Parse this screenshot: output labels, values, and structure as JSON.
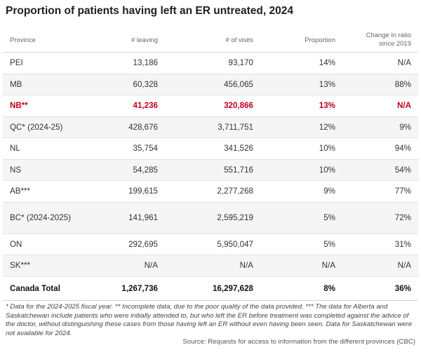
{
  "chart_data": {
    "type": "table",
    "title": "Proportion of patients having left an ER untreated, 2024",
    "columns": [
      "Province",
      "# leaving",
      "# of visits",
      "Proportion",
      "Change in ratio since 2019"
    ],
    "rows": [
      {
        "province": "PEI",
        "leaving": "13,186",
        "visits": "93,170",
        "proportion": "14%",
        "change": "N/A"
      },
      {
        "province": "MB",
        "leaving": "60,328",
        "visits": "456,065",
        "proportion": "13%",
        "change": "88%"
      },
      {
        "province": "NB**",
        "leaving": "41,236",
        "visits": "320,866",
        "proportion": "13%",
        "change": "N/A",
        "highlight": true
      },
      {
        "province": "QC* (2024-25)",
        "leaving": "428,676",
        "visits": "3,711,751",
        "proportion": "12%",
        "change": "9%"
      },
      {
        "province": "NL",
        "leaving": "35,754",
        "visits": "341,526",
        "proportion": "10%",
        "change": "94%"
      },
      {
        "province": "NS",
        "leaving": "54,285",
        "visits": "551,716",
        "proportion": "10%",
        "change": "54%"
      },
      {
        "province": "AB***",
        "leaving": "199,615",
        "visits": "2,277,268",
        "proportion": "9%",
        "change": "77%"
      },
      {
        "province": "BC* (2024-2025)",
        "leaving": "141,961",
        "visits": "2,595,219",
        "proportion": "5%",
        "change": "72%"
      },
      {
        "province": "ON",
        "leaving": "292,695",
        "visits": "5,950,047",
        "proportion": "5%",
        "change": "31%"
      },
      {
        "province": "SK***",
        "leaving": "N/A",
        "visits": "N/A",
        "proportion": "N/A",
        "change": "N/A"
      }
    ],
    "total": {
      "province": "Canada Total",
      "leaving": "1,267,736",
      "visits": "16,297,628",
      "proportion": "8%",
      "change": "36%"
    }
  },
  "footnote": "* Data for the 2024-2025 fiscal year. ** Incomplete data, due to the poor quality of the data provided. *** The data for Alberta and Saskatchewan include patients who were initially attended to, but who left the ER before treatment was completed against the advice of the doctor, without distinguishing these cases from those having left an ER without even having been seen. Data for Saskatchewan were not available for 2024.",
  "source": "Source: Requests for access to information from the different provinces (CBC)",
  "colors": {
    "highlight": "#c2001e",
    "row_stripe": "#f5f5f5"
  }
}
